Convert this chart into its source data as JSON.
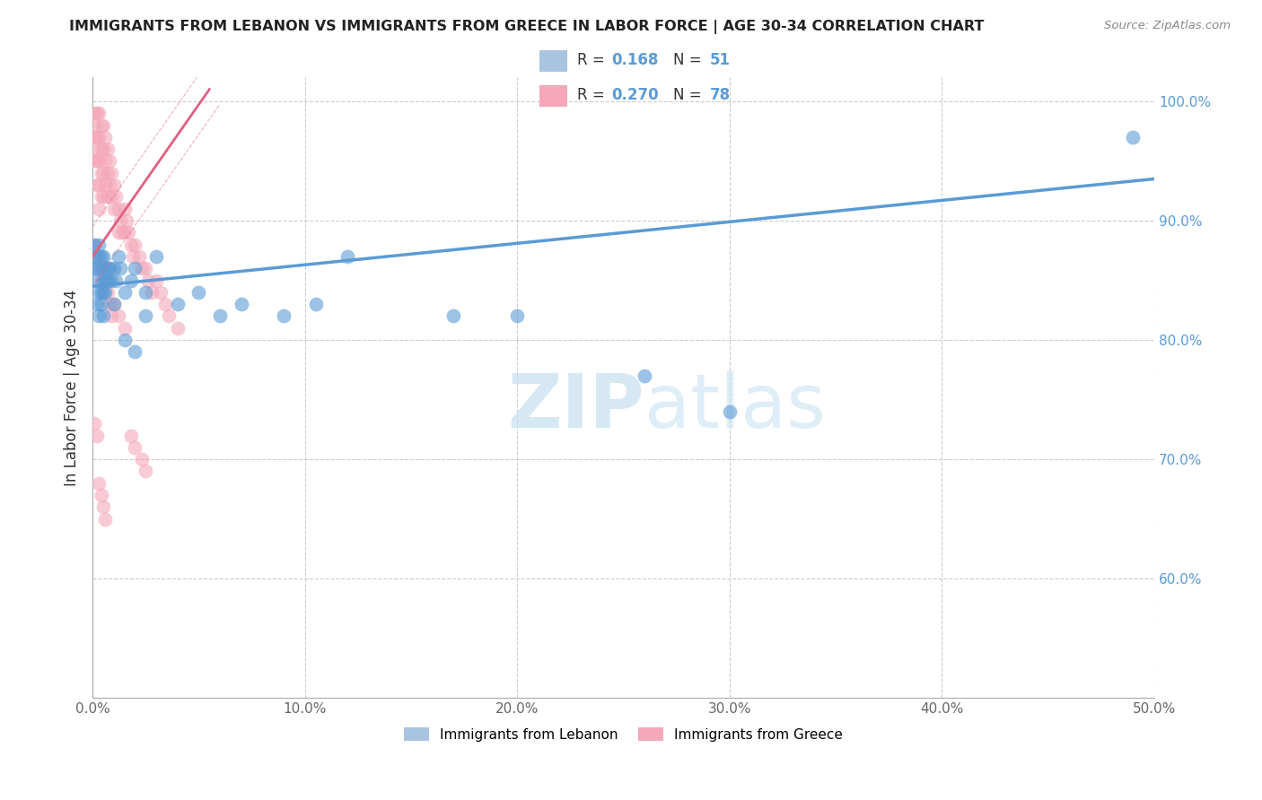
{
  "title": "IMMIGRANTS FROM LEBANON VS IMMIGRANTS FROM GREECE IN LABOR FORCE | AGE 30-34 CORRELATION CHART",
  "source": "Source: ZipAtlas.com",
  "ylabel": "In Labor Force | Age 30-34",
  "watermark": "ZIPatlas",
  "xlim": [
    0.0,
    0.5
  ],
  "ylim": [
    0.5,
    1.02
  ],
  "xticks": [
    0.0,
    0.1,
    0.2,
    0.3,
    0.4,
    0.5
  ],
  "xtick_labels": [
    "0.0%",
    "",
    "",
    "",
    "",
    "50.0%"
  ],
  "yticks_right": [
    0.6,
    0.7,
    0.8,
    0.9,
    1.0
  ],
  "ytick_labels_right": [
    "60.0%",
    "70.0%",
    "80.0%",
    "90.0%",
    "100.0%"
  ],
  "blue_color": "#5b9bd5",
  "pink_color": "#f4a7b9",
  "pink_line_color": "#e06080",
  "trend_blue_x0": 0.0,
  "trend_blue_y0": 0.845,
  "trend_blue_x1": 0.5,
  "trend_blue_y1": 0.935,
  "trend_pink_x0": 0.0,
  "trend_pink_y0": 0.87,
  "trend_pink_x1": 0.055,
  "trend_pink_y1": 1.01,
  "legend_r1": "R = 0.168   N = 51",
  "legend_r2": "R = 0.270   N = 78",
  "lebanon_x": [
    0.001,
    0.001,
    0.001,
    0.002,
    0.002,
    0.003,
    0.003,
    0.003,
    0.004,
    0.004,
    0.004,
    0.005,
    0.005,
    0.005,
    0.006,
    0.006,
    0.007,
    0.007,
    0.008,
    0.009,
    0.01,
    0.011,
    0.012,
    0.013,
    0.015,
    0.018,
    0.02,
    0.025,
    0.03,
    0.04,
    0.05,
    0.06,
    0.07,
    0.09,
    0.105,
    0.12,
    0.17,
    0.2,
    0.26,
    0.3,
    0.49,
    0.002,
    0.003,
    0.004,
    0.005,
    0.006,
    0.007,
    0.01,
    0.015,
    0.02,
    0.025
  ],
  "lebanon_y": [
    0.88,
    0.87,
    0.86,
    0.86,
    0.85,
    0.88,
    0.87,
    0.84,
    0.87,
    0.86,
    0.84,
    0.87,
    0.85,
    0.84,
    0.86,
    0.85,
    0.86,
    0.85,
    0.86,
    0.85,
    0.86,
    0.85,
    0.87,
    0.86,
    0.84,
    0.85,
    0.86,
    0.84,
    0.87,
    0.83,
    0.84,
    0.82,
    0.83,
    0.82,
    0.83,
    0.87,
    0.82,
    0.82,
    0.77,
    0.74,
    0.97,
    0.83,
    0.82,
    0.83,
    0.82,
    0.84,
    0.85,
    0.83,
    0.8,
    0.79,
    0.82
  ],
  "greece_x": [
    0.001,
    0.001,
    0.001,
    0.001,
    0.001,
    0.002,
    0.002,
    0.002,
    0.002,
    0.003,
    0.003,
    0.003,
    0.003,
    0.003,
    0.004,
    0.004,
    0.004,
    0.004,
    0.005,
    0.005,
    0.005,
    0.005,
    0.006,
    0.006,
    0.006,
    0.007,
    0.007,
    0.007,
    0.008,
    0.008,
    0.009,
    0.009,
    0.01,
    0.01,
    0.011,
    0.012,
    0.012,
    0.013,
    0.014,
    0.015,
    0.015,
    0.016,
    0.017,
    0.018,
    0.019,
    0.02,
    0.022,
    0.023,
    0.025,
    0.026,
    0.028,
    0.03,
    0.032,
    0.034,
    0.036,
    0.04,
    0.001,
    0.002,
    0.003,
    0.004,
    0.005,
    0.006,
    0.007,
    0.008,
    0.009,
    0.01,
    0.012,
    0.015,
    0.018,
    0.02,
    0.023,
    0.025,
    0.001,
    0.002,
    0.003,
    0.004,
    0.005,
    0.006
  ],
  "greece_y": [
    0.99,
    0.98,
    0.97,
    0.96,
    0.95,
    0.99,
    0.97,
    0.95,
    0.93,
    0.99,
    0.97,
    0.95,
    0.93,
    0.91,
    0.98,
    0.96,
    0.94,
    0.92,
    0.98,
    0.96,
    0.94,
    0.92,
    0.97,
    0.95,
    0.93,
    0.96,
    0.94,
    0.92,
    0.95,
    0.93,
    0.94,
    0.92,
    0.93,
    0.91,
    0.92,
    0.91,
    0.89,
    0.9,
    0.89,
    0.91,
    0.89,
    0.9,
    0.89,
    0.88,
    0.87,
    0.88,
    0.87,
    0.86,
    0.86,
    0.85,
    0.84,
    0.85,
    0.84,
    0.83,
    0.82,
    0.81,
    0.88,
    0.86,
    0.87,
    0.85,
    0.86,
    0.85,
    0.84,
    0.83,
    0.82,
    0.83,
    0.82,
    0.81,
    0.72,
    0.71,
    0.7,
    0.69,
    0.73,
    0.72,
    0.68,
    0.67,
    0.66,
    0.65
  ]
}
